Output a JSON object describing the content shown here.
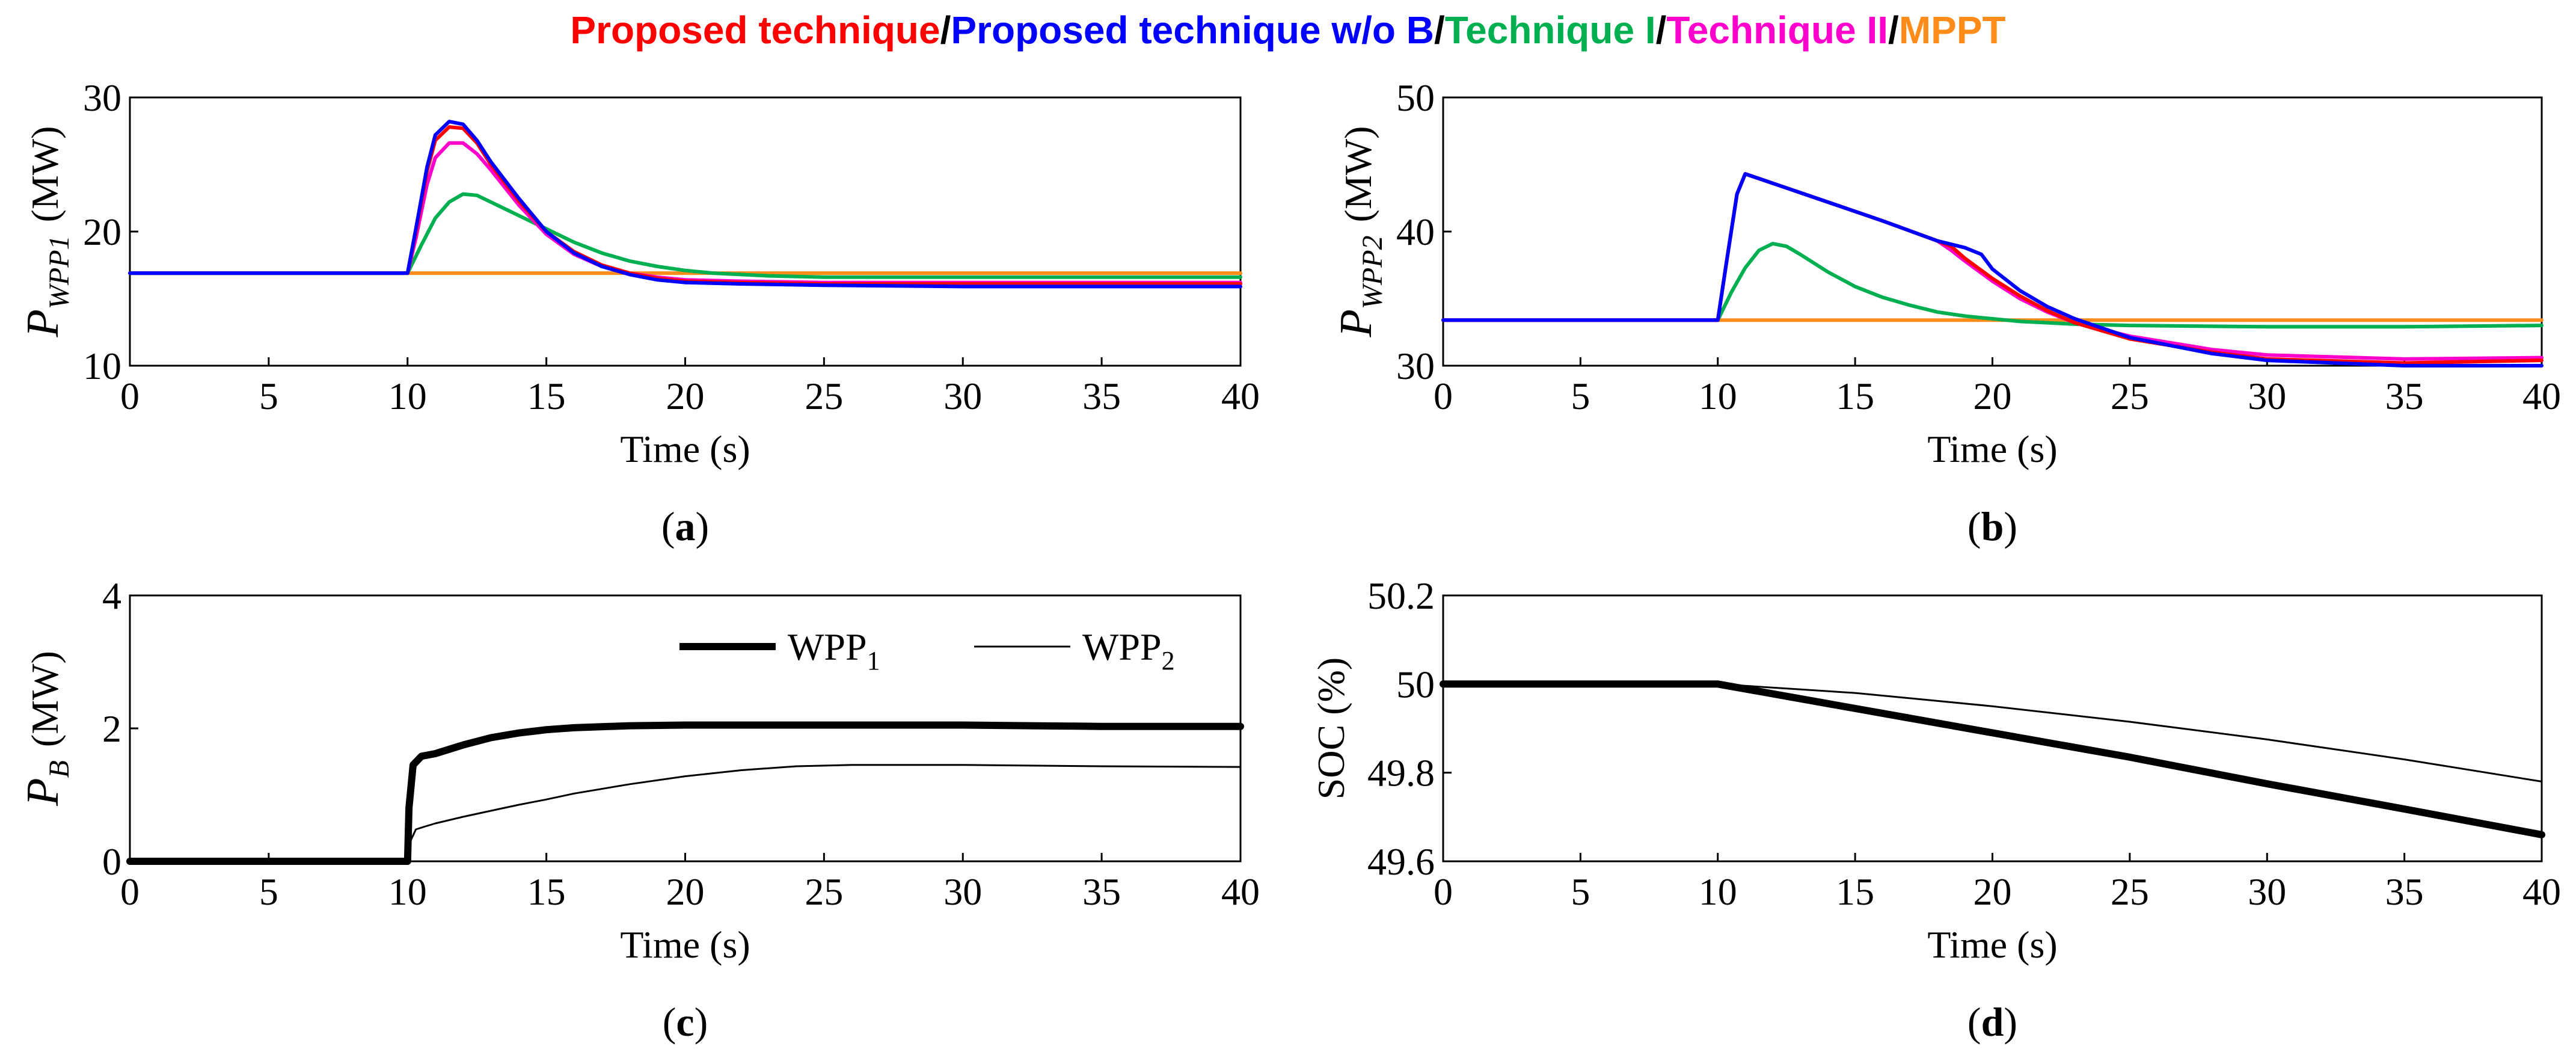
{
  "legend_header": {
    "entries": [
      {
        "name": "Proposed technique",
        "color": "#ff0000"
      },
      {
        "name": "Proposed technique w/o B",
        "color": "#0000ff"
      },
      {
        "name": "Technique I",
        "color": "#00b050"
      },
      {
        "name": "Technique II",
        "color": "#ff00cc"
      },
      {
        "name": "MPPT",
        "color": "#ff8c1a"
      }
    ],
    "separator": "/"
  },
  "chart_data": [
    {
      "id": "a",
      "type": "line",
      "panel_label": "(a)",
      "panel_letter": "a",
      "ylabel_main": "P",
      "ylabel_sub": "WPP1",
      "ylabel_unit": "(MW)",
      "xlabel": "Time (s)",
      "xlim": [
        0,
        40
      ],
      "ylim": [
        10,
        30
      ],
      "xticks": [
        0,
        5,
        10,
        15,
        20,
        25,
        30,
        35,
        40
      ],
      "yticks": [
        10,
        20,
        30
      ],
      "grid": false,
      "series": [
        {
          "name": "MPPT",
          "color": "#ff8c1a",
          "width": 6,
          "x": [
            0,
            40
          ],
          "y": [
            16.9,
            16.9
          ]
        },
        {
          "name": "Technique I",
          "color": "#00b050",
          "width": 6,
          "x": [
            0,
            10,
            10.5,
            11,
            11.5,
            12,
            12.5,
            13,
            14,
            15,
            16,
            17,
            18,
            19,
            20,
            21,
            23,
            25,
            30,
            35,
            40
          ],
          "y": [
            16.9,
            16.9,
            19.0,
            21.0,
            22.2,
            22.8,
            22.7,
            22.2,
            21.2,
            20.2,
            19.2,
            18.4,
            17.8,
            17.4,
            17.1,
            16.9,
            16.7,
            16.6,
            16.6,
            16.6,
            16.6
          ]
        },
        {
          "name": "Technique II",
          "color": "#ff00cc",
          "width": 6,
          "x": [
            0,
            10,
            10.3,
            10.7,
            11,
            11.5,
            12,
            12.5,
            13,
            14,
            15,
            16,
            17,
            18,
            19,
            20,
            22,
            25,
            30,
            35,
            40
          ],
          "y": [
            16.9,
            16.9,
            19.5,
            23.5,
            25.5,
            26.6,
            26.6,
            25.8,
            24.6,
            22.0,
            19.8,
            18.3,
            17.4,
            16.9,
            16.6,
            16.4,
            16.3,
            16.2,
            16.2,
            16.2,
            16.2
          ]
        },
        {
          "name": "Proposed technique",
          "color": "#ff0000",
          "width": 6,
          "x": [
            0,
            10,
            10.3,
            10.7,
            11,
            11.5,
            12,
            12.5,
            13,
            14,
            15,
            16,
            17,
            18,
            19,
            20,
            22,
            25,
            30,
            35,
            40
          ],
          "y": [
            16.9,
            16.9,
            20.0,
            24.5,
            26.8,
            27.8,
            27.7,
            26.6,
            25.0,
            22.3,
            20.0,
            18.5,
            17.5,
            16.9,
            16.5,
            16.3,
            16.2,
            16.1,
            16.1,
            16.1,
            16.1
          ]
        },
        {
          "name": "Proposed technique w/o B",
          "color": "#0000ff",
          "width": 6,
          "x": [
            0,
            10,
            10.3,
            10.7,
            11,
            11.5,
            12,
            12.5,
            13,
            14,
            15,
            16,
            17,
            18,
            19,
            20,
            22,
            25,
            30,
            35,
            40
          ],
          "y": [
            16.9,
            16.9,
            20.2,
            24.8,
            27.2,
            28.2,
            28.0,
            26.8,
            25.2,
            22.5,
            20.0,
            18.4,
            17.4,
            16.8,
            16.4,
            16.2,
            16.1,
            16.0,
            15.9,
            15.9,
            15.9
          ]
        }
      ]
    },
    {
      "id": "b",
      "type": "line",
      "panel_label": "(b)",
      "panel_letter": "b",
      "ylabel_main": "P",
      "ylabel_sub": "WPP2",
      "ylabel_unit": "(MW)",
      "xlabel": "Time (s)",
      "xlim": [
        0,
        40
      ],
      "ylim": [
        30,
        50
      ],
      "xticks": [
        0,
        5,
        10,
        15,
        20,
        25,
        30,
        35,
        40
      ],
      "yticks": [
        30,
        40,
        50
      ],
      "grid": false,
      "series": [
        {
          "name": "MPPT",
          "color": "#ff8c1a",
          "width": 6,
          "x": [
            0,
            40
          ],
          "y": [
            33.4,
            33.4
          ]
        },
        {
          "name": "Technique I",
          "color": "#00b050",
          "width": 6,
          "x": [
            0,
            10,
            10.5,
            11,
            11.5,
            12,
            12.5,
            13,
            14,
            15,
            16,
            17,
            18,
            19,
            20,
            21,
            23,
            25,
            30,
            35,
            40
          ],
          "y": [
            33.4,
            33.4,
            35.5,
            37.3,
            38.6,
            39.1,
            38.9,
            38.3,
            37.0,
            35.9,
            35.1,
            34.5,
            34.0,
            33.7,
            33.5,
            33.3,
            33.1,
            33.0,
            32.9,
            32.9,
            33.0
          ]
        },
        {
          "name": "Technique II",
          "color": "#ff00cc",
          "width": 6,
          "x": [
            0,
            10,
            10.3,
            10.7,
            11,
            12,
            14,
            16,
            18,
            18.5,
            19,
            20,
            21,
            22,
            23,
            25,
            28,
            30,
            35,
            40
          ],
          "y": [
            33.4,
            33.4,
            37.5,
            42.8,
            44.3,
            43.6,
            42.2,
            40.8,
            39.3,
            38.6,
            37.8,
            36.3,
            35.0,
            34.0,
            33.2,
            32.2,
            31.2,
            30.8,
            30.5,
            30.6
          ]
        },
        {
          "name": "Proposed technique",
          "color": "#ff0000",
          "width": 6,
          "x": [
            0,
            10,
            10.3,
            10.7,
            11,
            12,
            14,
            16,
            18,
            18.5,
            19,
            20,
            21,
            22,
            23,
            25,
            28,
            30,
            35,
            40
          ],
          "y": [
            33.4,
            33.4,
            37.5,
            42.8,
            44.3,
            43.6,
            42.2,
            40.8,
            39.3,
            38.9,
            38.0,
            36.5,
            35.2,
            34.1,
            33.2,
            32.0,
            31.0,
            30.5,
            30.2,
            30.4
          ]
        },
        {
          "name": "Proposed technique w/o B",
          "color": "#0000ff",
          "width": 6,
          "x": [
            0,
            10,
            10.3,
            10.7,
            11,
            12,
            14,
            16,
            18,
            19,
            19.6,
            20,
            21,
            22,
            23,
            25,
            28,
            30,
            35,
            40
          ],
          "y": [
            33.4,
            33.4,
            37.5,
            42.8,
            44.3,
            43.6,
            42.2,
            40.8,
            39.3,
            38.8,
            38.3,
            37.2,
            35.6,
            34.4,
            33.5,
            32.1,
            30.9,
            30.4,
            30.0,
            30.0
          ]
        }
      ]
    },
    {
      "id": "c",
      "type": "line",
      "panel_label": "(c)",
      "panel_letter": "c",
      "ylabel_main": "P",
      "ylabel_sub": "B",
      "ylabel_unit": "(MW)",
      "xlabel": "Time (s)",
      "xlim": [
        0,
        40
      ],
      "ylim": [
        0,
        4
      ],
      "xticks": [
        0,
        5,
        10,
        15,
        20,
        25,
        30,
        35,
        40
      ],
      "yticks": [
        0,
        2,
        4
      ],
      "grid": false,
      "legend": {
        "position": "top-right",
        "entries": [
          {
            "main": "WPP",
            "sub": "1",
            "width": 12
          },
          {
            "main": "WPP",
            "sub": "2",
            "width": 3
          }
        ]
      },
      "series": [
        {
          "name": "WPP1",
          "color": "#000000",
          "width": 12,
          "x": [
            0,
            10,
            10.05,
            10.2,
            10.5,
            11,
            12,
            13,
            14,
            15,
            16,
            18,
            20,
            25,
            30,
            35,
            40
          ],
          "y": [
            0,
            0,
            0.8,
            1.45,
            1.58,
            1.62,
            1.75,
            1.86,
            1.93,
            1.98,
            2.01,
            2.04,
            2.05,
            2.05,
            2.05,
            2.03,
            2.03
          ]
        },
        {
          "name": "WPP2",
          "color": "#000000",
          "width": 3,
          "x": [
            0,
            10,
            10.1,
            10.3,
            10.6,
            11,
            12,
            13,
            14,
            15,
            16,
            18,
            20,
            22,
            24,
            26,
            30,
            35,
            40
          ],
          "y": [
            0,
            0,
            0.3,
            0.48,
            0.52,
            0.57,
            0.67,
            0.76,
            0.85,
            0.93,
            1.02,
            1.16,
            1.28,
            1.37,
            1.43,
            1.45,
            1.45,
            1.43,
            1.42
          ]
        }
      ]
    },
    {
      "id": "d",
      "type": "line",
      "panel_label": "(d)",
      "panel_letter": "d",
      "ylabel_main": "SOC (%)",
      "ylabel_sub": "",
      "ylabel_unit": "",
      "xlabel": "Time (s)",
      "xlim": [
        0,
        40
      ],
      "ylim": [
        49.6,
        50.2
      ],
      "xticks": [
        0,
        5,
        10,
        15,
        20,
        25,
        30,
        35,
        40
      ],
      "yticks": [
        49.6,
        49.8,
        50,
        50.2
      ],
      "ytick_labels": [
        "49.6",
        "49.8",
        "50",
        "50.2"
      ],
      "grid": false,
      "series": [
        {
          "name": "WPP1",
          "color": "#000000",
          "width": 12,
          "x": [
            0,
            10,
            15,
            20,
            25,
            30,
            35,
            40
          ],
          "y": [
            50.0,
            50.0,
            49.945,
            49.89,
            49.835,
            49.775,
            49.718,
            49.66
          ]
        },
        {
          "name": "WPP2",
          "color": "#000000",
          "width": 3,
          "x": [
            0,
            10,
            15,
            20,
            25,
            30,
            35,
            40
          ],
          "y": [
            50.0,
            50.0,
            49.98,
            49.95,
            49.915,
            49.875,
            49.83,
            49.78
          ]
        }
      ]
    }
  ]
}
